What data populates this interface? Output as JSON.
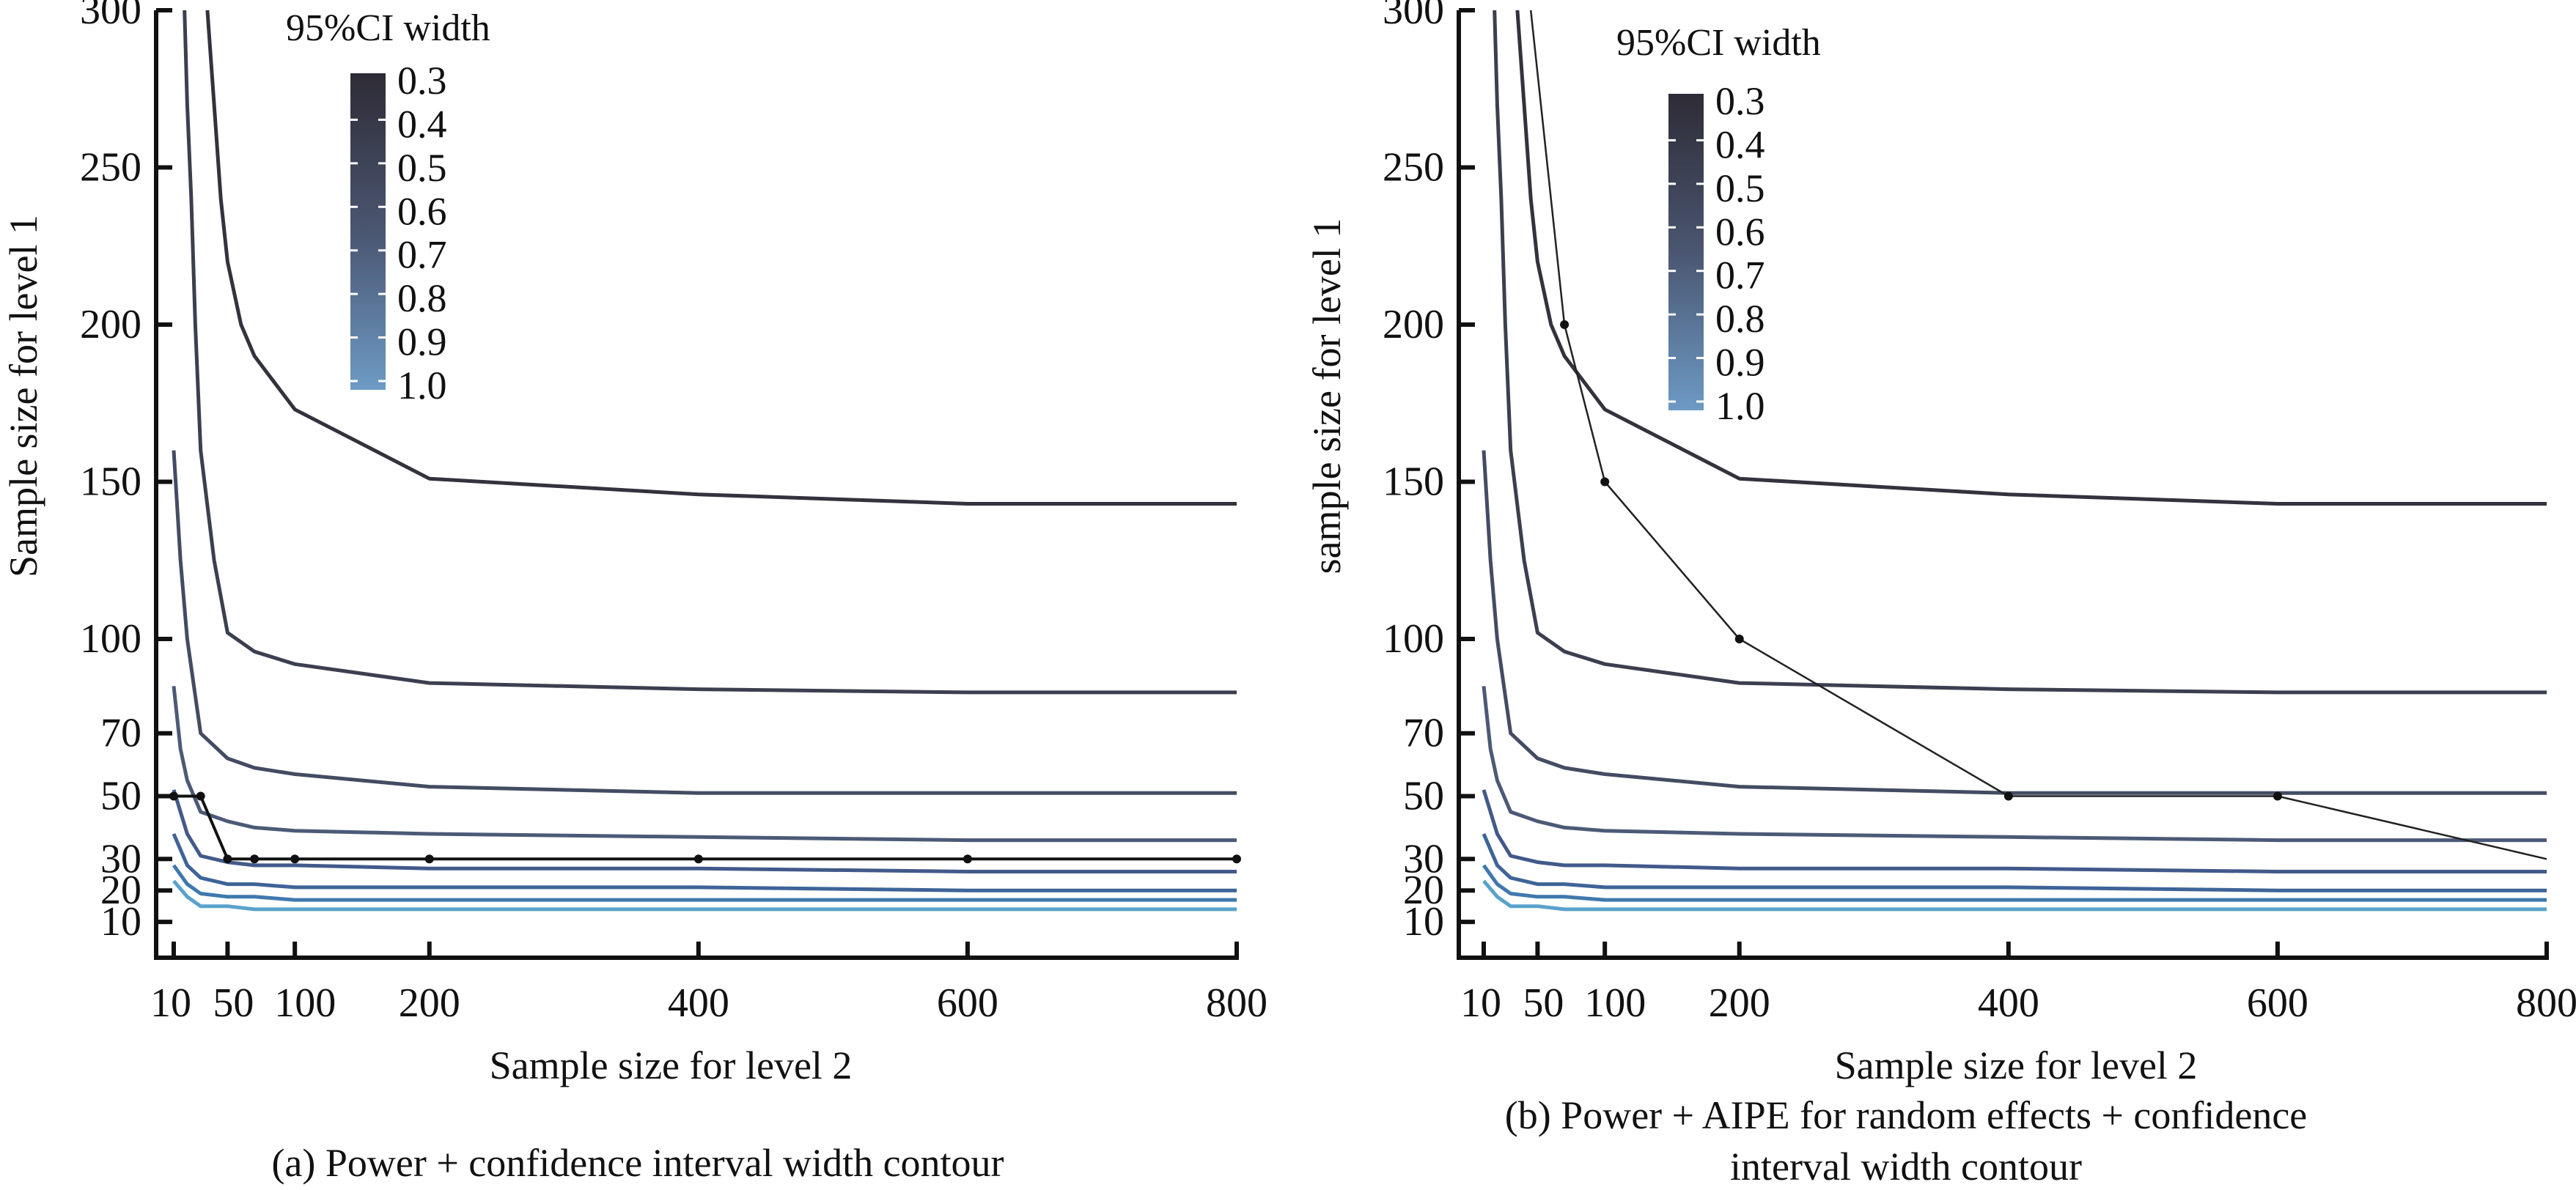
{
  "chart_data": [
    {
      "id": "a",
      "type": "line",
      "title": "",
      "caption": [
        "(a) Power + confidence interval width contour"
      ],
      "xlabel": "Sample size for level 2",
      "ylabel": "Sample size for level 1",
      "xlim": [
        10,
        800
      ],
      "ylim": [
        0,
        300
      ],
      "xticks": [
        10,
        50,
        100,
        200,
        400,
        600,
        800
      ],
      "yticks": [
        10,
        20,
        30,
        50,
        70,
        100,
        150,
        200,
        250,
        300
      ],
      "grid": false,
      "legend": {
        "title": "95%CI width",
        "placement": "top-left",
        "levels": [
          "0.3",
          "0.4",
          "0.5",
          "0.6",
          "0.7",
          "0.8",
          "0.9",
          "1.0"
        ],
        "color_dark": "#2e2c36",
        "color_light": "#6d9ac4"
      },
      "contours": [
        {
          "level": "0.3",
          "color": "#33323d",
          "points": [
            [
              35,
              300
            ],
            [
              40,
              270
            ],
            [
              45,
              240
            ],
            [
              50,
              220
            ],
            [
              60,
              200
            ],
            [
              70,
              190
            ],
            [
              100,
              173
            ],
            [
              200,
              151
            ],
            [
              400,
              146
            ],
            [
              600,
              143
            ],
            [
              800,
              143
            ]
          ]
        },
        {
          "level": "0.4",
          "color": "#3b3f4f",
          "points": [
            [
              18,
              300
            ],
            [
              20,
              270
            ],
            [
              23,
              240
            ],
            [
              26,
              200
            ],
            [
              30,
              160
            ],
            [
              40,
              125
            ],
            [
              50,
              102
            ],
            [
              70,
              96
            ],
            [
              100,
              92
            ],
            [
              200,
              86
            ],
            [
              400,
              84
            ],
            [
              600,
              83
            ],
            [
              800,
              83
            ]
          ]
        },
        {
          "level": "0.5",
          "color": "#434c62",
          "points": [
            [
              10,
              160
            ],
            [
              15,
              125
            ],
            [
              20,
              100
            ],
            [
              25,
              85
            ],
            [
              30,
              70
            ],
            [
              50,
              62
            ],
            [
              70,
              59
            ],
            [
              100,
              57
            ],
            [
              200,
              53
            ],
            [
              400,
              51
            ],
            [
              600,
              51
            ],
            [
              800,
              51
            ]
          ]
        },
        {
          "level": "0.6",
          "color": "#4b5a76",
          "points": [
            [
              10,
              85
            ],
            [
              15,
              65
            ],
            [
              20,
              55
            ],
            [
              30,
              45
            ],
            [
              50,
              42
            ],
            [
              70,
              40
            ],
            [
              100,
              39
            ],
            [
              200,
              38
            ],
            [
              400,
              37
            ],
            [
              600,
              36
            ],
            [
              800,
              36
            ]
          ]
        },
        {
          "level": "0.7",
          "color": "#42598a",
          "points": [
            [
              10,
              52
            ],
            [
              20,
              38
            ],
            [
              30,
              31
            ],
            [
              50,
              29
            ],
            [
              70,
              28
            ],
            [
              100,
              28
            ],
            [
              200,
              27
            ],
            [
              400,
              27
            ],
            [
              600,
              26
            ],
            [
              800,
              26
            ]
          ]
        },
        {
          "level": "0.8",
          "color": "#3e6498",
          "points": [
            [
              10,
              38
            ],
            [
              20,
              28
            ],
            [
              30,
              24
            ],
            [
              50,
              22
            ],
            [
              70,
              22
            ],
            [
              100,
              21
            ],
            [
              200,
              21
            ],
            [
              400,
              21
            ],
            [
              600,
              20
            ],
            [
              800,
              20
            ]
          ]
        },
        {
          "level": "0.9",
          "color": "#3f78ad",
          "points": [
            [
              10,
              28
            ],
            [
              20,
              22
            ],
            [
              30,
              19
            ],
            [
              50,
              18
            ],
            [
              70,
              18
            ],
            [
              100,
              17
            ],
            [
              200,
              17
            ],
            [
              400,
              17
            ],
            [
              600,
              17
            ],
            [
              800,
              17
            ]
          ]
        },
        {
          "level": "1.0",
          "color": "#5aa2cc",
          "points": [
            [
              10,
              23
            ],
            [
              20,
              18
            ],
            [
              30,
              15
            ],
            [
              50,
              15
            ],
            [
              70,
              14
            ],
            [
              100,
              14
            ],
            [
              200,
              14
            ],
            [
              400,
              14
            ],
            [
              600,
              14
            ],
            [
              800,
              14
            ]
          ]
        }
      ],
      "overlay": {
        "name": "Power",
        "color": "#111111",
        "points": [
          [
            10,
            50
          ],
          [
            30,
            50
          ],
          [
            50,
            30
          ],
          [
            70,
            30
          ],
          [
            100,
            30
          ],
          [
            200,
            30
          ],
          [
            400,
            30
          ],
          [
            600,
            30
          ],
          [
            800,
            30
          ]
        ],
        "markers": [
          [
            10,
            50
          ],
          [
            30,
            50
          ],
          [
            50,
            30
          ],
          [
            70,
            30
          ],
          [
            100,
            30
          ],
          [
            200,
            30
          ],
          [
            400,
            30
          ],
          [
            600,
            30
          ],
          [
            800,
            30
          ]
        ]
      }
    },
    {
      "id": "b",
      "type": "line",
      "title": "",
      "caption": [
        "(b) Power + AIPE for random effects + confidence",
        "interval width contour"
      ],
      "xlabel": "Sample size for level 2",
      "ylabel": "sample size for level 1",
      "xlim": [
        10,
        800
      ],
      "ylim": [
        0,
        300
      ],
      "xticks": [
        10,
        50,
        100,
        200,
        400,
        600,
        800
      ],
      "yticks": [
        10,
        20,
        30,
        50,
        70,
        100,
        150,
        200,
        250,
        300
      ],
      "grid": false,
      "legend": {
        "title": "95%CI width",
        "placement": "top-left",
        "levels": [
          "0.3",
          "0.4",
          "0.5",
          "0.6",
          "0.7",
          "0.8",
          "0.9",
          "1.0"
        ],
        "color_dark": "#2e2c36",
        "color_light": "#6d9ac4"
      },
      "contours": [
        {
          "level": "0.3",
          "color": "#33323d",
          "points": [
            [
              35,
              300
            ],
            [
              40,
              270
            ],
            [
              45,
              240
            ],
            [
              50,
              220
            ],
            [
              60,
              200
            ],
            [
              70,
              190
            ],
            [
              100,
              173
            ],
            [
              200,
              151
            ],
            [
              400,
              146
            ],
            [
              600,
              143
            ],
            [
              800,
              143
            ]
          ]
        },
        {
          "level": "0.4",
          "color": "#3b3f4f",
          "points": [
            [
              18,
              300
            ],
            [
              20,
              270
            ],
            [
              23,
              240
            ],
            [
              26,
              200
            ],
            [
              30,
              160
            ],
            [
              40,
              125
            ],
            [
              50,
              102
            ],
            [
              70,
              96
            ],
            [
              100,
              92
            ],
            [
              200,
              86
            ],
            [
              400,
              84
            ],
            [
              600,
              83
            ],
            [
              800,
              83
            ]
          ]
        },
        {
          "level": "0.5",
          "color": "#434c62",
          "points": [
            [
              10,
              160
            ],
            [
              15,
              125
            ],
            [
              20,
              100
            ],
            [
              25,
              85
            ],
            [
              30,
              70
            ],
            [
              50,
              62
            ],
            [
              70,
              59
            ],
            [
              100,
              57
            ],
            [
              200,
              53
            ],
            [
              400,
              51
            ],
            [
              600,
              51
            ],
            [
              800,
              51
            ]
          ]
        },
        {
          "level": "0.6",
          "color": "#4b5a76",
          "points": [
            [
              10,
              85
            ],
            [
              15,
              65
            ],
            [
              20,
              55
            ],
            [
              30,
              45
            ],
            [
              50,
              42
            ],
            [
              70,
              40
            ],
            [
              100,
              39
            ],
            [
              200,
              38
            ],
            [
              400,
              37
            ],
            [
              600,
              36
            ],
            [
              800,
              36
            ]
          ]
        },
        {
          "level": "0.7",
          "color": "#42598a",
          "points": [
            [
              10,
              52
            ],
            [
              20,
              38
            ],
            [
              30,
              31
            ],
            [
              50,
              29
            ],
            [
              70,
              28
            ],
            [
              100,
              28
            ],
            [
              200,
              27
            ],
            [
              400,
              27
            ],
            [
              600,
              26
            ],
            [
              800,
              26
            ]
          ]
        },
        {
          "level": "0.8",
          "color": "#3e6498",
          "points": [
            [
              10,
              38
            ],
            [
              20,
              28
            ],
            [
              30,
              24
            ],
            [
              50,
              22
            ],
            [
              70,
              22
            ],
            [
              100,
              21
            ],
            [
              200,
              21
            ],
            [
              400,
              21
            ],
            [
              600,
              20
            ],
            [
              800,
              20
            ]
          ]
        },
        {
          "level": "0.9",
          "color": "#3f78ad",
          "points": [
            [
              10,
              28
            ],
            [
              20,
              22
            ],
            [
              30,
              19
            ],
            [
              50,
              18
            ],
            [
              70,
              18
            ],
            [
              100,
              17
            ],
            [
              200,
              17
            ],
            [
              400,
              17
            ],
            [
              600,
              17
            ],
            [
              800,
              17
            ]
          ]
        },
        {
          "level": "1.0",
          "color": "#5aa2cc",
          "points": [
            [
              10,
              23
            ],
            [
              20,
              18
            ],
            [
              30,
              15
            ],
            [
              50,
              15
            ],
            [
              70,
              14
            ],
            [
              100,
              14
            ],
            [
              200,
              14
            ],
            [
              400,
              14
            ],
            [
              600,
              14
            ],
            [
              800,
              14
            ]
          ]
        }
      ],
      "overlay": {
        "name": "Power + AIPE for random effects",
        "color": "#222222",
        "points": [
          [
            45,
            300
          ],
          [
            70,
            200
          ],
          [
            100,
            150
          ],
          [
            200,
            100
          ],
          [
            400,
            50
          ],
          [
            600,
            50
          ],
          [
            800,
            30
          ]
        ],
        "markers": [
          [
            70,
            200
          ],
          [
            100,
            150
          ],
          [
            200,
            100
          ],
          [
            400,
            50
          ],
          [
            600,
            50
          ]
        ]
      }
    }
  ]
}
